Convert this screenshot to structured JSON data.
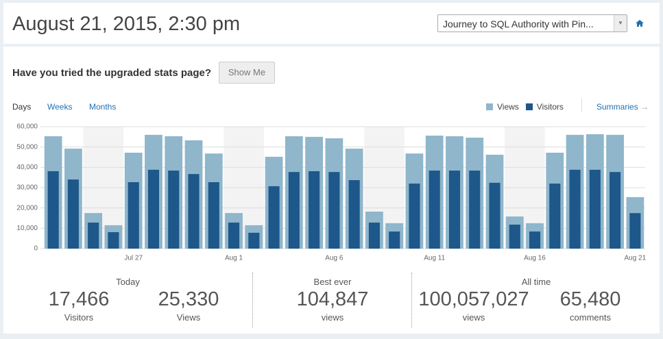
{
  "header": {
    "date": "August 21, 2015, 2:30 pm",
    "blog_select": "Journey to SQL Authority with Pin..."
  },
  "banner": {
    "text": "Have you tried the upgraded stats page?",
    "button": "Show Me"
  },
  "tabs": [
    "Days",
    "Weeks",
    "Months"
  ],
  "summaries_link": "Summaries",
  "chart_data": {
    "type": "bar",
    "categories": [
      null,
      null,
      null,
      null,
      "Jul 27",
      null,
      null,
      null,
      null,
      "Aug 1",
      null,
      null,
      null,
      null,
      "Aug 6",
      null,
      null,
      null,
      null,
      "Aug 11",
      null,
      null,
      null,
      null,
      "Aug 16",
      null,
      null,
      null,
      null,
      "Aug 21"
    ],
    "series": [
      {
        "name": "Views",
        "color": "#8fb6cb",
        "values": [
          55300,
          49200,
          17500,
          11500,
          47200,
          56000,
          55300,
          53300,
          46800,
          17500,
          11500,
          45200,
          55300,
          55000,
          54300,
          49200,
          18200,
          12500,
          46800,
          55600,
          55300,
          54600,
          46200,
          15800,
          12500,
          47200,
          56000,
          56300,
          56000,
          25330
        ]
      },
      {
        "name": "Visitors",
        "color": "#1e578a",
        "values": [
          38100,
          34000,
          12800,
          8100,
          32700,
          38800,
          38400,
          36700,
          32700,
          12800,
          7800,
          30700,
          37700,
          38100,
          37700,
          33700,
          12800,
          8400,
          32000,
          38400,
          38400,
          38400,
          32400,
          11800,
          8400,
          32000,
          38800,
          38800,
          37700,
          17466
        ]
      }
    ],
    "ylim": [
      0,
      60000
    ],
    "yticks": [
      0,
      {
        "value": 10000,
        "label": "10,000"
      },
      {
        "value": 20000,
        "label": "20,000"
      },
      {
        "value": 30000,
        "label": "30,000"
      },
      {
        "value": 40000,
        "label": "40,000"
      },
      {
        "value": 50000,
        "label": "50,000"
      },
      {
        "value": 60000,
        "label": "60,000"
      }
    ],
    "grid": true
  },
  "stats": {
    "today": {
      "title": "Today",
      "visitors": {
        "number": "17,466",
        "label": "Visitors"
      },
      "views": {
        "number": "25,330",
        "label": "Views"
      }
    },
    "best_ever": {
      "title": "Best ever",
      "views": {
        "number": "104,847",
        "label": "views"
      }
    },
    "all_time": {
      "title": "All time",
      "views": {
        "number": "100,057,027",
        "label": "views"
      },
      "comments": {
        "number": "65,480",
        "label": "comments"
      }
    }
  }
}
